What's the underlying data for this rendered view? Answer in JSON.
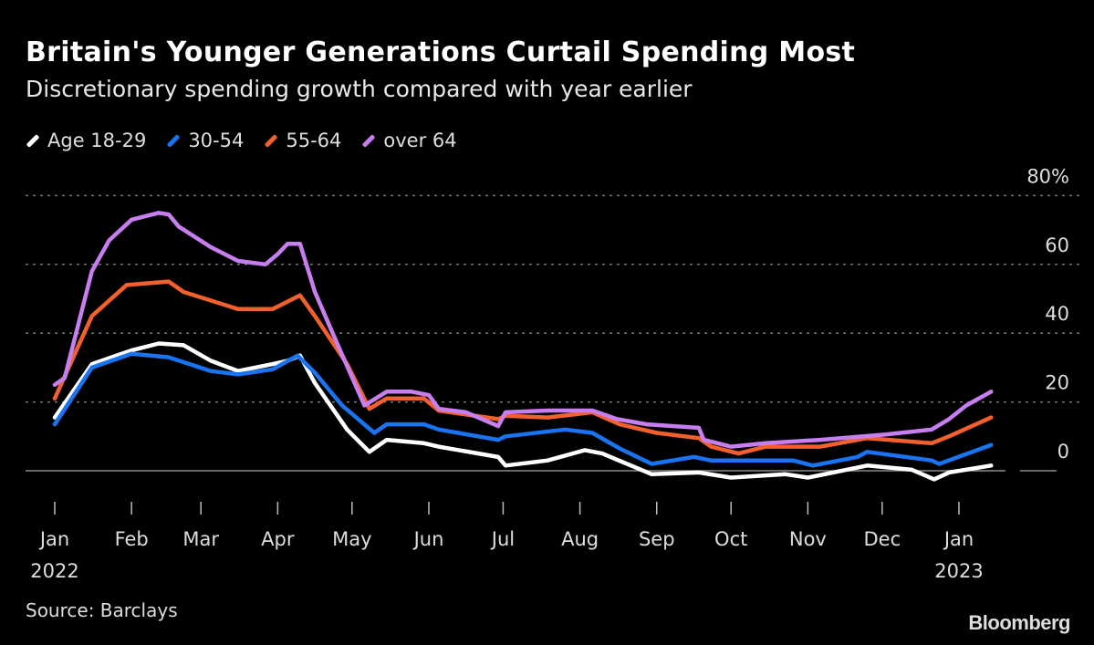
{
  "chart_data": {
    "type": "line",
    "title": "Britain's Younger Generations Curtail Spending Most",
    "subtitle": "Discretionary spending growth compared with year earlier",
    "source": "Source: Barclays",
    "logo": "Bloomberg",
    "xlabel": "",
    "ylabel": "",
    "xlim": [
      "2022-01-01",
      "2023-01-01"
    ],
    "ylim": [
      -5,
      80
    ],
    "y_ticks": [
      {
        "value": 80,
        "label": "80%"
      },
      {
        "value": 60,
        "label": "60"
      },
      {
        "value": 40,
        "label": "40"
      },
      {
        "value": 20,
        "label": "20"
      },
      {
        "value": 0,
        "label": "0"
      }
    ],
    "x_ticks": [
      {
        "date": "2022-01-01",
        "label": "Jan",
        "year": "2022"
      },
      {
        "date": "2022-02-01",
        "label": "Feb"
      },
      {
        "date": "2022-03-01",
        "label": "Mar"
      },
      {
        "date": "2022-04-01",
        "label": "Apr"
      },
      {
        "date": "2022-05-01",
        "label": "May"
      },
      {
        "date": "2022-06-01",
        "label": "Jun"
      },
      {
        "date": "2022-07-01",
        "label": "Jul"
      },
      {
        "date": "2022-08-01",
        "label": "Aug"
      },
      {
        "date": "2022-09-01",
        "label": "Sep"
      },
      {
        "date": "2022-10-01",
        "label": "Oct"
      },
      {
        "date": "2022-11-01",
        "label": "Nov"
      },
      {
        "date": "2022-12-01",
        "label": "Dec"
      },
      {
        "date": "2023-01-01",
        "label": "Jan",
        "year": "2023"
      }
    ],
    "grid": "horizontal dotted",
    "legend_position": "top-left",
    "series": [
      {
        "name": "Age 18-29",
        "color": "#ffffff",
        "points": [
          [
            "2022-01-01",
            15.5
          ],
          [
            "2022-01-16",
            31
          ],
          [
            "2022-02-01",
            35
          ],
          [
            "2022-02-12",
            37
          ],
          [
            "2022-02-22",
            36.5
          ],
          [
            "2022-03-05",
            32
          ],
          [
            "2022-03-16",
            29
          ],
          [
            "2022-03-30",
            31
          ],
          [
            "2022-04-05",
            32
          ],
          [
            "2022-04-10",
            33.5
          ],
          [
            "2022-04-16",
            25.5
          ],
          [
            "2022-04-29",
            12
          ],
          [
            "2022-05-08",
            5.5
          ],
          [
            "2022-05-15",
            9
          ],
          [
            "2022-05-30",
            8
          ],
          [
            "2022-06-05",
            7
          ],
          [
            "2022-06-29",
            4
          ],
          [
            "2022-07-02",
            1.5
          ],
          [
            "2022-07-19",
            3
          ],
          [
            "2022-08-03",
            6
          ],
          [
            "2022-08-10",
            5
          ],
          [
            "2022-08-30",
            -1
          ],
          [
            "2022-09-18",
            -0.5
          ],
          [
            "2022-10-01",
            -2
          ],
          [
            "2022-10-23",
            -1
          ],
          [
            "2022-11-01",
            -2
          ],
          [
            "2022-11-25",
            1.5
          ],
          [
            "2022-12-13",
            0.3
          ],
          [
            "2022-12-22",
            -2.5
          ],
          [
            "2022-12-28",
            -0.5
          ],
          [
            "2023-01-14",
            1.5
          ]
        ]
      },
      {
        "name": "30-54",
        "color": "#1a73f0",
        "points": [
          [
            "2022-01-01",
            13.5
          ],
          [
            "2022-01-16",
            30
          ],
          [
            "2022-02-01",
            34
          ],
          [
            "2022-02-16",
            33
          ],
          [
            "2022-03-05",
            29
          ],
          [
            "2022-03-16",
            28
          ],
          [
            "2022-03-30",
            29.5
          ],
          [
            "2022-04-09",
            33.5
          ],
          [
            "2022-04-16",
            28.5
          ],
          [
            "2022-04-27",
            19
          ],
          [
            "2022-05-10",
            11
          ],
          [
            "2022-05-15",
            13.5
          ],
          [
            "2022-05-30",
            13.5
          ],
          [
            "2022-06-05",
            12
          ],
          [
            "2022-06-29",
            9
          ],
          [
            "2022-07-02",
            10
          ],
          [
            "2022-07-26",
            12
          ],
          [
            "2022-08-06",
            11
          ],
          [
            "2022-08-17",
            6.5
          ],
          [
            "2022-08-30",
            2
          ],
          [
            "2022-09-16",
            4
          ],
          [
            "2022-09-23",
            3
          ],
          [
            "2022-10-26",
            3
          ],
          [
            "2022-11-03",
            1.5
          ],
          [
            "2022-11-21",
            4
          ],
          [
            "2022-11-25",
            5.5
          ],
          [
            "2022-12-21",
            3
          ],
          [
            "2022-12-24",
            2
          ],
          [
            "2023-01-14",
            7.5
          ]
        ]
      },
      {
        "name": "55-64",
        "color": "#f2612d",
        "points": [
          [
            "2022-01-01",
            21
          ],
          [
            "2022-01-16",
            45
          ],
          [
            "2022-01-30",
            54
          ],
          [
            "2022-02-16",
            55
          ],
          [
            "2022-02-22",
            52
          ],
          [
            "2022-03-16",
            47
          ],
          [
            "2022-03-30",
            47
          ],
          [
            "2022-04-10",
            51
          ],
          [
            "2022-04-16",
            45
          ],
          [
            "2022-04-29",
            31
          ],
          [
            "2022-05-08",
            18
          ],
          [
            "2022-05-15",
            21
          ],
          [
            "2022-05-30",
            21
          ],
          [
            "2022-06-05",
            17.5
          ],
          [
            "2022-06-29",
            15
          ],
          [
            "2022-07-02",
            16
          ],
          [
            "2022-07-19",
            15.5
          ],
          [
            "2022-08-06",
            17
          ],
          [
            "2022-08-17",
            13.5
          ],
          [
            "2022-09-01",
            11
          ],
          [
            "2022-09-18",
            9.5
          ],
          [
            "2022-09-23",
            7
          ],
          [
            "2022-10-04",
            5
          ],
          [
            "2022-10-15",
            7
          ],
          [
            "2022-11-06",
            7
          ],
          [
            "2022-11-25",
            9.5
          ],
          [
            "2022-12-21",
            8
          ],
          [
            "2022-12-28",
            10
          ],
          [
            "2023-01-14",
            15.5
          ]
        ]
      },
      {
        "name": "over 64",
        "color": "#c77ff0",
        "points": [
          [
            "2022-01-01",
            25
          ],
          [
            "2022-01-05",
            27
          ],
          [
            "2022-01-16",
            58
          ],
          [
            "2022-01-23",
            67
          ],
          [
            "2022-02-01",
            73
          ],
          [
            "2022-02-12",
            75
          ],
          [
            "2022-02-16",
            74.5
          ],
          [
            "2022-02-20",
            71
          ],
          [
            "2022-03-05",
            65
          ],
          [
            "2022-03-16",
            61
          ],
          [
            "2022-03-27",
            60
          ],
          [
            "2022-04-01",
            63
          ],
          [
            "2022-04-05",
            66
          ],
          [
            "2022-04-10",
            66
          ],
          [
            "2022-04-16",
            52
          ],
          [
            "2022-04-25",
            37
          ],
          [
            "2022-05-06",
            19
          ],
          [
            "2022-05-15",
            23
          ],
          [
            "2022-05-25",
            23
          ],
          [
            "2022-06-01",
            22
          ],
          [
            "2022-06-05",
            18
          ],
          [
            "2022-06-16",
            17
          ],
          [
            "2022-06-29",
            13
          ],
          [
            "2022-07-02",
            17
          ],
          [
            "2022-07-19",
            17.5
          ],
          [
            "2022-08-06",
            17.5
          ],
          [
            "2022-08-16",
            15
          ],
          [
            "2022-08-28",
            13.5
          ],
          [
            "2022-09-18",
            12.5
          ],
          [
            "2022-09-20",
            9
          ],
          [
            "2022-10-01",
            7
          ],
          [
            "2022-10-15",
            8
          ],
          [
            "2022-11-06",
            9
          ],
          [
            "2022-12-02",
            10.5
          ],
          [
            "2022-12-21",
            12
          ],
          [
            "2022-12-28",
            15
          ],
          [
            "2023-01-04",
            19
          ],
          [
            "2023-01-14",
            23
          ]
        ]
      }
    ]
  }
}
